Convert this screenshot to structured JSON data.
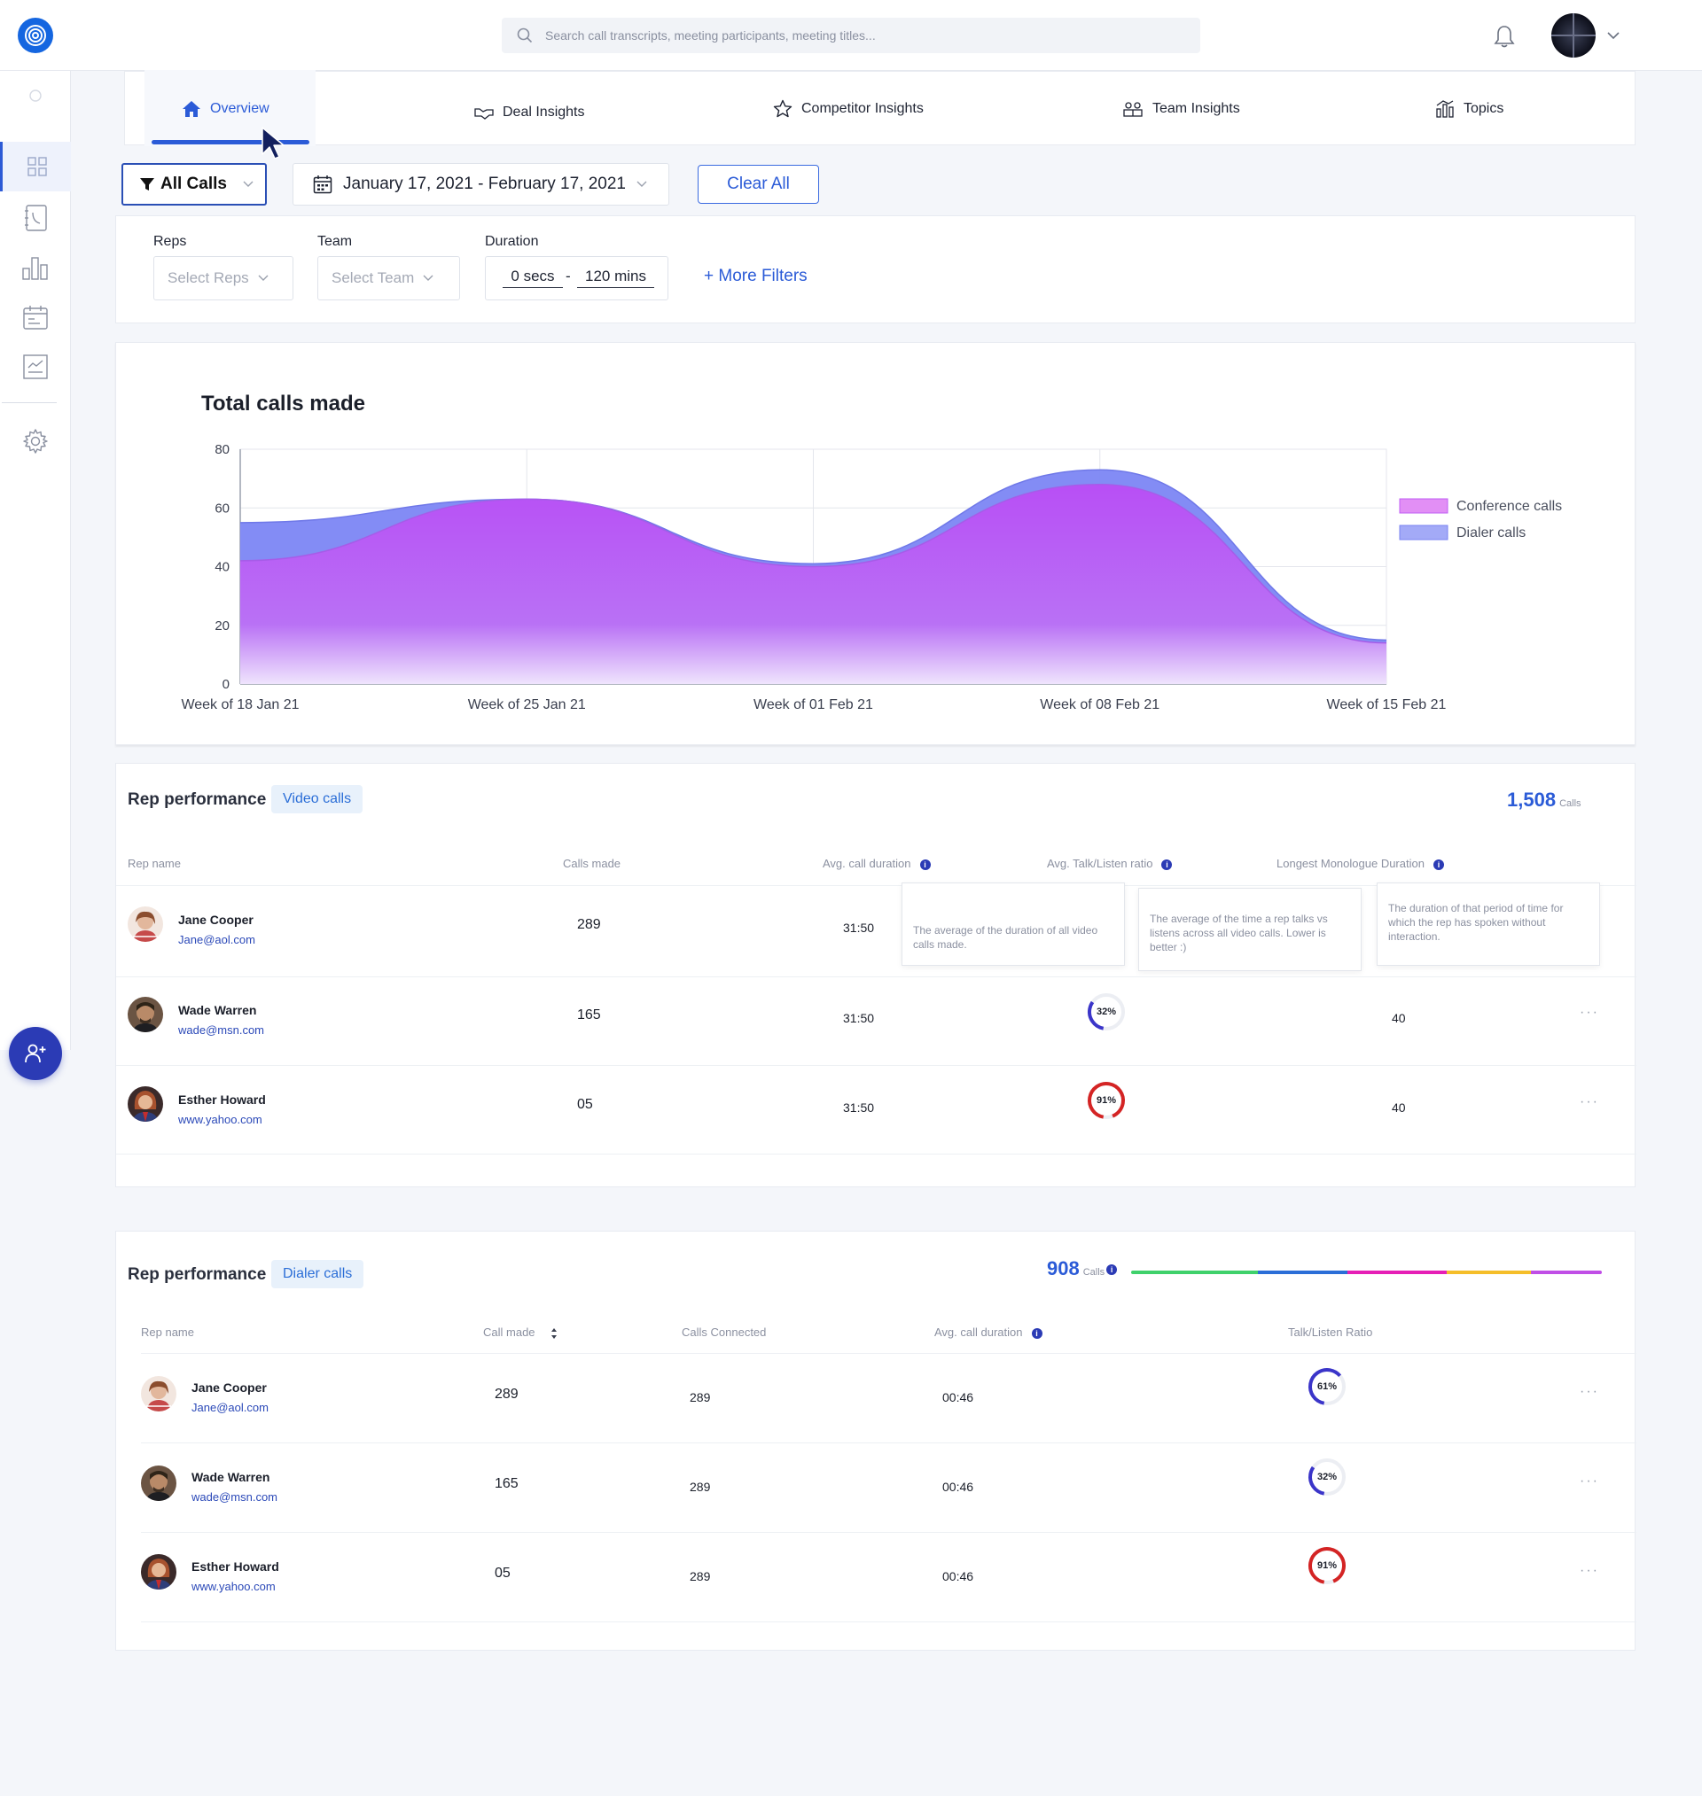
{
  "header": {
    "search_placeholder": "Search call transcripts, meeting participants, meeting titles..."
  },
  "tabs": [
    {
      "label": "Overview",
      "icon": "home-icon",
      "active": true
    },
    {
      "label": "Deal Insights",
      "icon": "handshake-icon"
    },
    {
      "label": "Competitor Insights",
      "icon": "star-icon"
    },
    {
      "label": "Team Insights",
      "icon": "team-icon"
    },
    {
      "label": "Topics",
      "icon": "bar-chart-icon"
    }
  ],
  "filters": {
    "all_calls_label": "All Calls",
    "date_range": "January 17, 2021 - February 17, 2021",
    "clear_label": "Clear All",
    "reps_label": "Reps",
    "reps_placeholder": "Select Reps",
    "team_label": "Team",
    "team_placeholder": "Select Team",
    "duration_label": "Duration",
    "duration_min": "0 secs",
    "duration_sep": "-",
    "duration_max": "120 mins",
    "more_filters": "+ More Filters"
  },
  "chart_data": {
    "type": "area",
    "title": "Total calls made",
    "categories": [
      "Week of 18 Jan 21",
      "Week of 25 Jan 21",
      "Week of 01 Feb 21",
      "Week of 08 Feb 21",
      "Week of 15 Feb 21"
    ],
    "ylim": [
      0,
      80
    ],
    "yticks": [
      0,
      20,
      40,
      60,
      80
    ],
    "series": [
      {
        "name": "Conference calls",
        "values": [
          42,
          63,
          40,
          68,
          14
        ],
        "color": "#c05cf5"
      },
      {
        "name": "Dialer calls",
        "values": [
          55,
          63,
          41,
          73,
          15
        ],
        "color": "#7a83f2"
      }
    ],
    "grid": true,
    "legend": "right"
  },
  "video_card": {
    "title": "Rep performance",
    "pill": "Video calls",
    "total": "1,508",
    "total_unit": "Calls",
    "headers": {
      "name": "Rep name",
      "calls": "Calls made",
      "avg_duration": "Avg. call duration",
      "ratio": "Avg. Talk/Listen ratio",
      "monologue": "Longest Monologue Duration"
    },
    "tooltips": {
      "avg_duration": "The average of the duration of all video calls made.",
      "ratio": "The average of the time a rep talks vs listens across all video calls. Lower is better :)",
      "monologue": "The duration of that period of time for which the rep has spoken without interaction."
    },
    "rows": [
      {
        "name": "Jane Cooper",
        "email": "Jane@aol.com",
        "calls": "289",
        "duration": "31:50"
      },
      {
        "name": "Wade Warren",
        "email": "wade@msn.com",
        "calls": "165",
        "duration": "31:50",
        "ratio": "32%",
        "ratio_value": 0.32,
        "monologue": "40"
      },
      {
        "name": "Esther Howard",
        "email": "www.yahoo.com",
        "calls": "05",
        "duration": "31:50",
        "ratio": "91%",
        "ratio_value": 0.91,
        "monologue": "40"
      }
    ]
  },
  "dialer_card": {
    "title": "Rep performance",
    "pill": "Dialer calls",
    "total": "908",
    "total_unit": "Calls",
    "bar_colors": [
      "#3fd16b",
      "#2b6ed7",
      "#e61fb6",
      "#f5be2a",
      "#c04ee6"
    ],
    "bar_fractions": [
      0.27,
      0.19,
      0.21,
      0.18,
      0.15
    ],
    "headers": {
      "name": "Rep name",
      "calls": "Call made",
      "connected": "Calls Connected",
      "avg_duration": "Avg. call duration",
      "ratio": "Talk/Listen Ratio"
    },
    "rows": [
      {
        "name": "Jane Cooper",
        "email": "Jane@aol.com",
        "calls": "289",
        "connected": "289",
        "duration": "00:46",
        "ratio": "61%",
        "ratio_value": 0.61
      },
      {
        "name": "Wade Warren",
        "email": "wade@msn.com",
        "calls": "165",
        "connected": "289",
        "duration": "00:46",
        "ratio": "32%",
        "ratio_value": 0.32
      },
      {
        "name": "Esther Howard",
        "email": "www.yahoo.com",
        "calls": "05",
        "connected": "289",
        "duration": "00:46",
        "ratio": "91%",
        "ratio_value": 0.91
      }
    ]
  }
}
